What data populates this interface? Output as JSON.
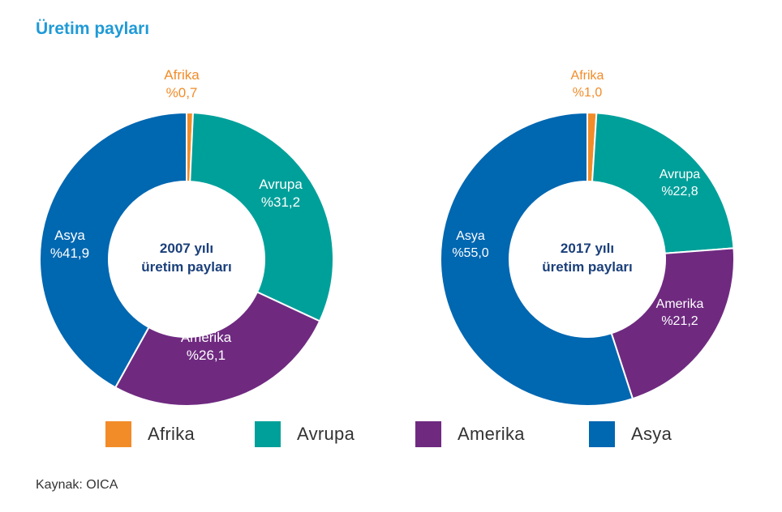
{
  "title": "Üretim payları",
  "source": "Kaynak: OICA",
  "colors": {
    "Afrika": "#f28c28",
    "Avrupa": "#00a09a",
    "Amerika": "#6f2a80",
    "Asya": "#0067b1",
    "center_text": "#1a3f7a"
  },
  "legend": [
    {
      "label": "Afrika"
    },
    {
      "label": "Avrupa"
    },
    {
      "label": "Amerika"
    },
    {
      "label": "Asya"
    }
  ],
  "chart_data": [
    {
      "type": "pie",
      "center_label": [
        "2007 yılı",
        "üretim payları"
      ],
      "categories": [
        "Afrika",
        "Avrupa",
        "Amerika",
        "Asya"
      ],
      "values": [
        0.7,
        31.2,
        26.1,
        41.9
      ],
      "value_labels": [
        "%0,7",
        "%31,2",
        "%26,1",
        "%41,9"
      ]
    },
    {
      "type": "pie",
      "center_label": [
        "2017 yılı",
        "üretim payları"
      ],
      "categories": [
        "Afrika",
        "Avrupa",
        "Amerika",
        "Asya"
      ],
      "values": [
        1.0,
        22.8,
        21.2,
        55.0
      ],
      "value_labels": [
        "%1,0",
        "%22,8",
        "%21,2",
        "%55,0"
      ]
    }
  ]
}
